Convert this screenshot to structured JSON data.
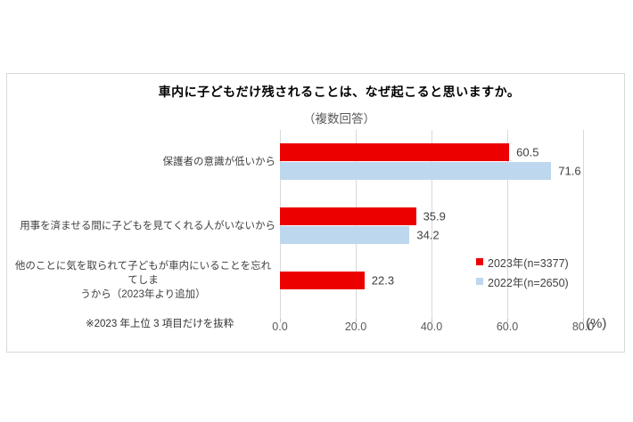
{
  "chart_data": {
    "type": "bar",
    "orientation": "horizontal",
    "title": "車内に子どもだけ残されることは、なぜ起こると思いますか。",
    "subtitle": "（複数回答）",
    "footnote": "※2023 年上位 3 項目だけを抜粋",
    "unit": "(%)",
    "categories": [
      "保護者の意識が低いから",
      "用事を済ませる間に子どもを見てくれる人がいないから",
      "他のことに気を取られて子どもが車内にいることを忘れてしま\nうから（2023年より追加）"
    ],
    "series": [
      {
        "name": "2023年(n=3377)",
        "color": "#ec0000",
        "values": [
          60.5,
          35.9,
          22.3
        ]
      },
      {
        "name": "2022年(n=2650)",
        "color": "#bdd7ee",
        "values": [
          71.6,
          34.2,
          null
        ]
      }
    ],
    "xlim": [
      0,
      80
    ],
    "xticks": [
      0,
      20,
      40,
      60,
      80
    ],
    "xtick_labels": [
      "0.0",
      "20.0",
      "40.0",
      "60.0",
      "80.0"
    ],
    "grid": true,
    "legend_position": "right-middle",
    "value_labels": true,
    "colors": {
      "grid": "#d9d9d9",
      "border": "#d9d9d9",
      "tick_label": "#595959",
      "value_label": "#404040"
    }
  }
}
